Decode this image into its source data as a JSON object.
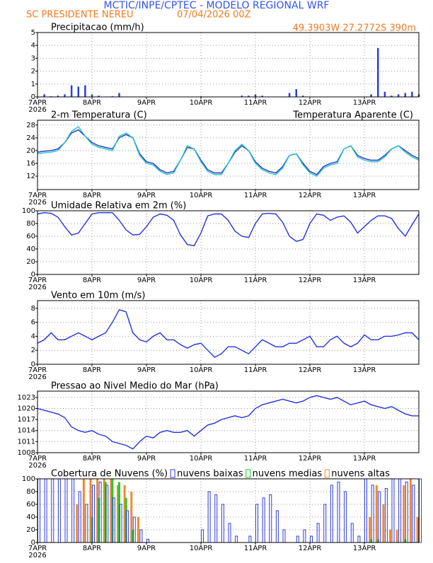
{
  "header": {
    "title": "MCTIC/INPE/CPTEC - MODELO REGIONAL WRF",
    "location": "SC PRESIDENTE NEREU",
    "run": "07/04/2026 00Z",
    "coords": "49.3903W 27.2772S 390m"
  },
  "chart_data": [
    {
      "type": "bar",
      "title": "Precipitacao (mm/h)",
      "color": "#2a3fe0",
      "grid": true,
      "xlim": [
        0,
        168
      ],
      "ylim": [
        0,
        5
      ],
      "yticks": [
        0,
        1,
        2,
        3,
        4,
        5
      ],
      "xticks": [
        {
          "value": 0,
          "label": "7APR"
        },
        {
          "value": 24,
          "label": "8APR"
        },
        {
          "value": 48,
          "label": "9APR"
        },
        {
          "value": 72,
          "label": "10APR"
        },
        {
          "value": 96,
          "label": "11APR"
        },
        {
          "value": 120,
          "label": "12APR"
        },
        {
          "value": 144,
          "label": "13APR"
        }
      ],
      "x_year": "2026",
      "x": [
        0,
        3,
        6,
        9,
        12,
        15,
        18,
        21,
        24,
        27,
        30,
        33,
        36,
        39,
        42,
        45,
        48,
        51,
        54,
        57,
        60,
        63,
        66,
        69,
        72,
        75,
        78,
        81,
        84,
        87,
        90,
        93,
        96,
        99,
        102,
        105,
        108,
        111,
        114,
        117,
        120,
        123,
        126,
        129,
        132,
        135,
        138,
        141,
        144,
        147,
        150,
        153,
        156,
        159,
        162,
        165,
        168
      ],
      "values": [
        0,
        0.2,
        0.05,
        0.1,
        0.2,
        0.9,
        0.8,
        0.9,
        0.2,
        0.1,
        0,
        0.05,
        0.3,
        0,
        0,
        0,
        0,
        0,
        0,
        0,
        0,
        0,
        0,
        0,
        0.05,
        0,
        0,
        0,
        0,
        0,
        0.1,
        0.1,
        0.2,
        0.1,
        0,
        0,
        0,
        0.3,
        0.6,
        0.1,
        0,
        0,
        0,
        0,
        0,
        0,
        0,
        0,
        0,
        0.2,
        3.8,
        0.4,
        0.1,
        0.2,
        0.3,
        0.4,
        0.2
      ]
    },
    {
      "type": "line",
      "title": "2-m Temperatura (C)",
      "grid": true,
      "legend": "right",
      "xlim": [
        0,
        168
      ],
      "ylim": [
        7.8,
        29.5
      ],
      "yticks": [
        12,
        16,
        20,
        24,
        28
      ],
      "xticks": [
        {
          "value": 0,
          "label": "7APR"
        },
        {
          "value": 24,
          "label": "8APR"
        },
        {
          "value": 48,
          "label": "9APR"
        },
        {
          "value": 72,
          "label": "10APR"
        },
        {
          "value": 96,
          "label": "11APR"
        },
        {
          "value": 120,
          "label": "12APR"
        },
        {
          "value": 144,
          "label": "13APR"
        }
      ],
      "x_year": "2026",
      "x": [
        0,
        3,
        6,
        9,
        12,
        15,
        18,
        21,
        24,
        27,
        30,
        33,
        36,
        39,
        42,
        45,
        48,
        51,
        54,
        57,
        60,
        63,
        66,
        69,
        72,
        75,
        78,
        81,
        84,
        87,
        90,
        93,
        96,
        99,
        102,
        105,
        108,
        111,
        114,
        117,
        120,
        123,
        126,
        129,
        132,
        135,
        138,
        141,
        144,
        147,
        150,
        153,
        156,
        159,
        162,
        165,
        168
      ],
      "series": [
        {
          "color": "#2233cc",
          "values": [
            19.5,
            19.8,
            20,
            20.5,
            22.5,
            25.5,
            26.5,
            24.5,
            22.5,
            21.5,
            21,
            20.5,
            24,
            25,
            24,
            19,
            16.5,
            16,
            14,
            13,
            13.5,
            17,
            21,
            20.5,
            17,
            14,
            13,
            13,
            16,
            19.5,
            21.5,
            20,
            16.5,
            14.5,
            13.5,
            13,
            15,
            18.5,
            19,
            16,
            13.5,
            12.5,
            15,
            16,
            16.5,
            20.5,
            21.5,
            18.5,
            17.5,
            17,
            17,
            18.5,
            20.5,
            21.5,
            20,
            18.5,
            17.5
          ]
        },
        {
          "name": "Temperatura Aparente (C)",
          "color": "#22c4c4",
          "values": [
            19,
            19.3,
            19.5,
            20,
            22.5,
            26,
            27.5,
            24.5,
            22,
            21,
            20.5,
            20,
            24.5,
            25.5,
            24,
            18.5,
            16,
            15.5,
            13.5,
            12.5,
            13,
            17,
            21.5,
            20.5,
            16.5,
            13.5,
            12.5,
            12.5,
            16,
            20,
            22,
            20,
            16,
            14,
            13,
            12.5,
            14.5,
            18.5,
            19,
            15.5,
            13,
            12,
            14.5,
            15.5,
            16,
            20.5,
            21.5,
            18,
            17,
            16.5,
            16.5,
            18,
            20.5,
            21.5,
            19.5,
            18,
            17
          ]
        }
      ]
    },
    {
      "type": "line",
      "title": "Umidade Relativa em 2m (%)",
      "color": "#2233dd",
      "grid": true,
      "xlim": [
        0,
        168
      ],
      "ylim": [
        0,
        100
      ],
      "yticks": [
        0,
        20,
        40,
        60,
        80,
        100
      ],
      "xticks": [
        {
          "value": 0,
          "label": "7APR"
        },
        {
          "value": 24,
          "label": "8APR"
        },
        {
          "value": 48,
          "label": "9APR"
        },
        {
          "value": 72,
          "label": "10APR"
        },
        {
          "value": 96,
          "label": "11APR"
        },
        {
          "value": 120,
          "label": "12APR"
        },
        {
          "value": 144,
          "label": "13APR"
        }
      ],
      "x_year": "2026",
      "x": [
        0,
        3,
        6,
        9,
        12,
        15,
        18,
        21,
        24,
        27,
        30,
        33,
        36,
        39,
        42,
        45,
        48,
        51,
        54,
        57,
        60,
        63,
        66,
        69,
        72,
        75,
        78,
        81,
        84,
        87,
        90,
        93,
        96,
        99,
        102,
        105,
        108,
        111,
        114,
        117,
        120,
        123,
        126,
        129,
        132,
        135,
        138,
        141,
        144,
        147,
        150,
        153,
        156,
        159,
        162,
        165,
        168
      ],
      "values": [
        95,
        97,
        96,
        90,
        75,
        62,
        65,
        80,
        95,
        97,
        97,
        97,
        85,
        70,
        62,
        63,
        75,
        90,
        95,
        93,
        85,
        62,
        47,
        45,
        65,
        92,
        95,
        95,
        85,
        68,
        60,
        58,
        80,
        95,
        96,
        95,
        82,
        60,
        52,
        55,
        80,
        95,
        93,
        85,
        90,
        92,
        82,
        65,
        75,
        85,
        92,
        92,
        88,
        72,
        60,
        78,
        95
      ]
    },
    {
      "type": "line",
      "title": "Vento em 10m (m/s)",
      "color": "#2233dd",
      "grid": true,
      "xlim": [
        0,
        168
      ],
      "ylim": [
        0,
        9.1
      ],
      "yticks": [
        0,
        2,
        4,
        6,
        8
      ],
      "xticks": [
        {
          "value": 0,
          "label": "7APR"
        },
        {
          "value": 24,
          "label": "8APR"
        },
        {
          "value": 48,
          "label": "9APR"
        },
        {
          "value": 72,
          "label": "10APR"
        },
        {
          "value": 96,
          "label": "11APR"
        },
        {
          "value": 120,
          "label": "12APR"
        },
        {
          "value": 144,
          "label": "13APR"
        }
      ],
      "x_year": "2026",
      "x": [
        0,
        3,
        6,
        9,
        12,
        15,
        18,
        21,
        24,
        27,
        30,
        33,
        36,
        39,
        42,
        45,
        48,
        51,
        54,
        57,
        60,
        63,
        66,
        69,
        72,
        75,
        78,
        81,
        84,
        87,
        90,
        93,
        96,
        99,
        102,
        105,
        108,
        111,
        114,
        117,
        120,
        123,
        126,
        129,
        132,
        135,
        138,
        141,
        144,
        147,
        150,
        153,
        156,
        159,
        162,
        165,
        168
      ],
      "values": [
        3,
        3.5,
        4.5,
        3.5,
        3.5,
        4,
        4.5,
        4,
        3.5,
        4,
        4.5,
        6,
        7.8,
        7.5,
        4.5,
        3.5,
        3.2,
        4,
        4.5,
        3.5,
        3.5,
        2.8,
        2.3,
        2.8,
        3,
        2,
        1,
        1.5,
        2.5,
        2.5,
        2,
        1.5,
        2.5,
        3.5,
        3,
        2.5,
        2.5,
        3,
        3,
        3.5,
        4,
        2.5,
        2.5,
        3.5,
        4,
        3,
        2.5,
        3,
        4.2,
        3.5,
        3.5,
        4,
        4,
        4.2,
        4.5,
        4.5,
        3.5
      ]
    },
    {
      "type": "line",
      "title": "Pressao ao Nivel Medio do Mar (hPa)",
      "color": "#2233dd",
      "grid": true,
      "xlim": [
        0,
        168
      ],
      "ylim": [
        1008,
        1024.7
      ],
      "yticks": [
        1008,
        1011,
        1014,
        1017,
        1020,
        1023
      ],
      "xticks": [
        {
          "value": 0,
          "label": "7APR"
        },
        {
          "value": 24,
          "label": "8APR"
        },
        {
          "value": 48,
          "label": "9APR"
        },
        {
          "value": 72,
          "label": "10APR"
        },
        {
          "value": 96,
          "label": "11APR"
        },
        {
          "value": 120,
          "label": "12APR"
        },
        {
          "value": 144,
          "label": "13APR"
        }
      ],
      "x_year": "2026",
      "x": [
        0,
        3,
        6,
        9,
        12,
        15,
        18,
        21,
        24,
        27,
        30,
        33,
        36,
        39,
        42,
        45,
        48,
        51,
        54,
        57,
        60,
        63,
        66,
        69,
        72,
        75,
        78,
        81,
        84,
        87,
        90,
        93,
        96,
        99,
        102,
        105,
        108,
        111,
        114,
        117,
        120,
        123,
        126,
        129,
        132,
        135,
        138,
        141,
        144,
        147,
        150,
        153,
        156,
        159,
        162,
        165,
        168
      ],
      "values": [
        1020,
        1019.5,
        1019,
        1018.5,
        1017.5,
        1015,
        1014,
        1013.5,
        1014,
        1013,
        1012.5,
        1011,
        1010.5,
        1010,
        1009,
        1011,
        1012.5,
        1012,
        1013.5,
        1014,
        1013.5,
        1013.5,
        1014,
        1012.5,
        1014,
        1015.5,
        1016,
        1017,
        1017.5,
        1018,
        1017.5,
        1018,
        1020,
        1021,
        1021.5,
        1022,
        1022.5,
        1022,
        1021.5,
        1022,
        1023,
        1023.5,
        1023,
        1022.5,
        1023,
        1022,
        1021,
        1021.5,
        1022,
        1021,
        1020.5,
        1020,
        1020.5,
        1019.5,
        1018.5,
        1018,
        1018
      ]
    },
    {
      "type": "bar",
      "title": "Cobertura de Nuvens (%)",
      "grid": true,
      "legend": "after-title",
      "xlim": [
        0,
        168
      ],
      "ylim": [
        0,
        100
      ],
      "yticks": [
        0,
        20,
        40,
        60,
        80,
        100
      ],
      "xticks": [
        {
          "value": 0,
          "label": "7APR"
        },
        {
          "value": 24,
          "label": "8APR"
        },
        {
          "value": 48,
          "label": "9APR"
        },
        {
          "value": 72,
          "label": "10APR"
        },
        {
          "value": 96,
          "label": "11APR"
        },
        {
          "value": 120,
          "label": "12APR"
        },
        {
          "value": 144,
          "label": "13APR"
        }
      ],
      "x_year": "2026",
      "x": [
        0,
        3,
        6,
        9,
        12,
        15,
        18,
        21,
        24,
        27,
        30,
        33,
        36,
        39,
        42,
        45,
        48,
        51,
        54,
        57,
        60,
        63,
        66,
        69,
        72,
        75,
        78,
        81,
        84,
        87,
        90,
        93,
        96,
        99,
        102,
        105,
        108,
        111,
        114,
        117,
        120,
        123,
        126,
        129,
        132,
        135,
        138,
        141,
        144,
        147,
        150,
        153,
        156,
        159,
        162,
        165,
        168
      ],
      "series": [
        {
          "name": "nuvens altas",
          "color": "#f08a30",
          "hollow": false,
          "values": [
            0,
            0,
            0,
            0,
            0,
            0,
            60,
            100,
            100,
            100,
            100,
            100,
            90,
            90,
            80,
            40,
            0,
            0,
            0,
            0,
            0,
            0,
            0,
            0,
            0,
            0,
            0,
            0,
            0,
            0,
            0,
            0,
            0,
            0,
            0,
            0,
            0,
            0,
            0,
            0,
            0,
            0,
            0,
            0,
            0,
            0,
            0,
            0,
            0,
            40,
            90,
            60,
            20,
            20,
            90,
            100,
            40
          ]
        },
        {
          "name": "nuvens medias",
          "color": "#22cc22",
          "hollow": false,
          "values": [
            0,
            0,
            0,
            0,
            0,
            0,
            0,
            0,
            40,
            70,
            95,
            100,
            95,
            70,
            20,
            0,
            0,
            0,
            0,
            0,
            0,
            0,
            0,
            0,
            0,
            0,
            0,
            0,
            0,
            0,
            0,
            0,
            0,
            0,
            0,
            0,
            0,
            0,
            0,
            0,
            0,
            0,
            0,
            0,
            0,
            0,
            0,
            0,
            0,
            5,
            5,
            0,
            0,
            0,
            5,
            0,
            0
          ]
        },
        {
          "name": "nuvens baixas",
          "color": "#2f3fe0",
          "hollow": true,
          "values": [
            100,
            100,
            100,
            100,
            100,
            100,
            80,
            60,
            90,
            95,
            90,
            70,
            60,
            50,
            40,
            20,
            5,
            0,
            0,
            0,
            0,
            0,
            0,
            0,
            20,
            80,
            75,
            60,
            30,
            10,
            0,
            10,
            60,
            70,
            75,
            50,
            20,
            0,
            10,
            20,
            10,
            30,
            60,
            90,
            95,
            80,
            30,
            10,
            100,
            90,
            80,
            85,
            100,
            100,
            95,
            90,
            100
          ]
        }
      ]
    }
  ]
}
